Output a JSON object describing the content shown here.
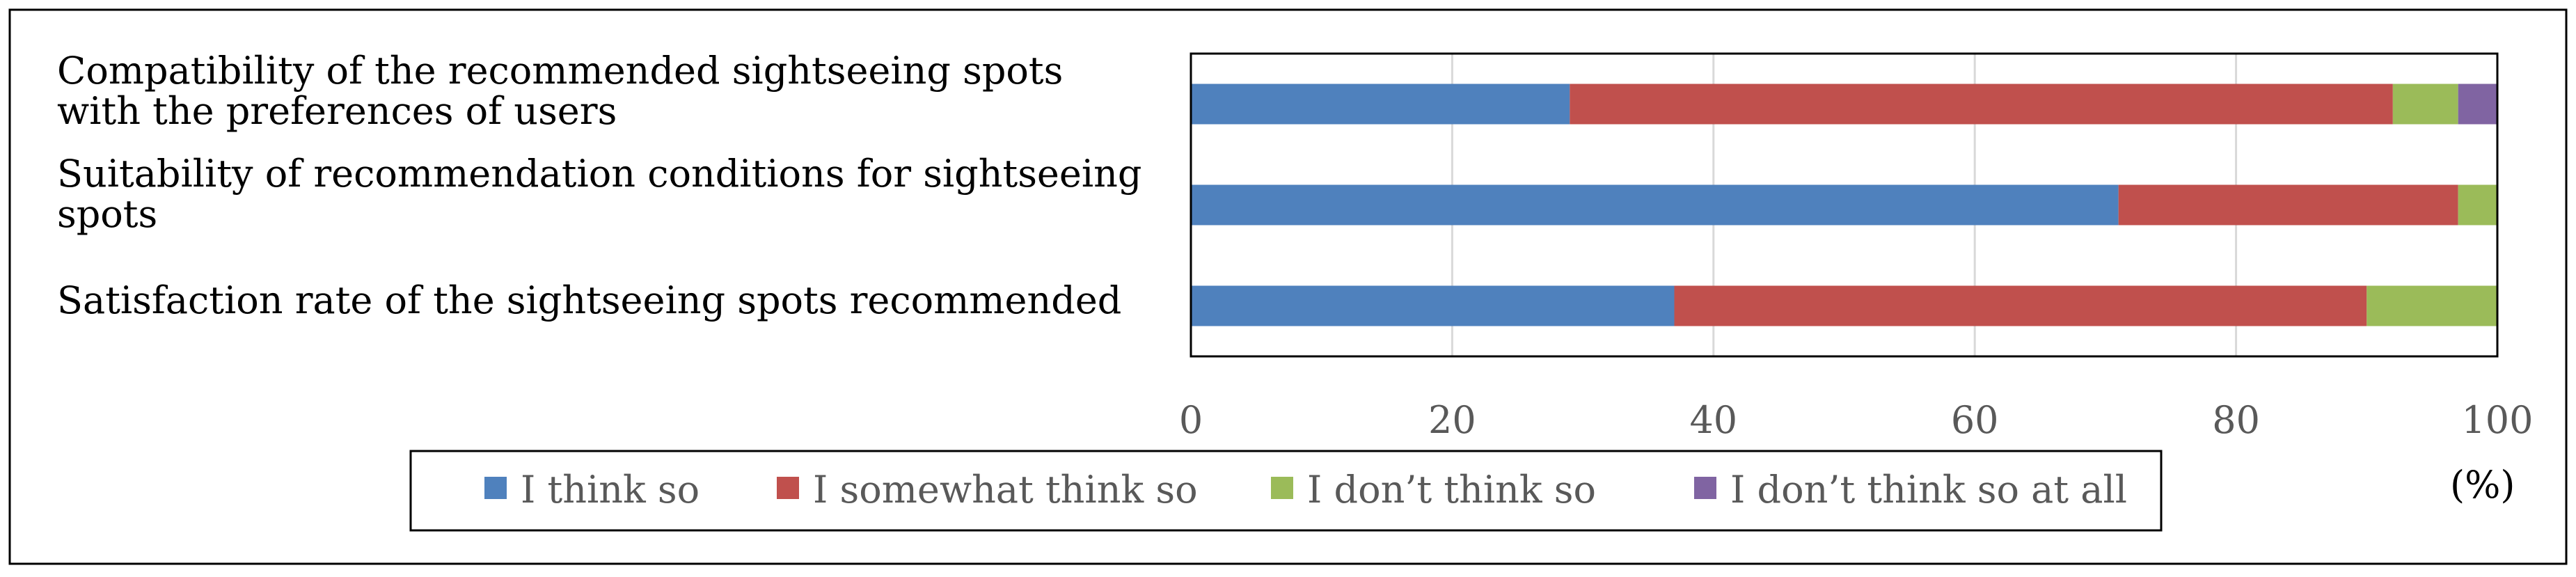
{
  "chart_data": {
    "type": "bar",
    "orientation": "horizontal",
    "stacked": true,
    "categories": [
      [
        "Compatibility of the recommended sightseeing spots",
        "with the preferences of users"
      ],
      [
        "Suitability of recommendation conditions for sightseeing",
        "spots"
      ],
      [
        "Satisfaction rate of the sightseeing spots recommended"
      ]
    ],
    "series": [
      {
        "name": "I think so",
        "color": "#4f81bd",
        "values": [
          29,
          71,
          37
        ]
      },
      {
        "name": "I somewhat think so",
        "color": "#c0504d",
        "values": [
          63,
          26,
          53
        ]
      },
      {
        "name": "I don’t think so",
        "color": "#9bbb59",
        "values": [
          5,
          3,
          10
        ]
      },
      {
        "name": "I don’t think so at all",
        "color": "#8064a2",
        "values": [
          3,
          0,
          0
        ]
      }
    ],
    "xlim": [
      0,
      100
    ],
    "xticks": [
      "0",
      "20",
      "40",
      "60",
      "80",
      "100"
    ],
    "unit_label": "(%)",
    "grid": true,
    "legend_position": "bottom"
  }
}
